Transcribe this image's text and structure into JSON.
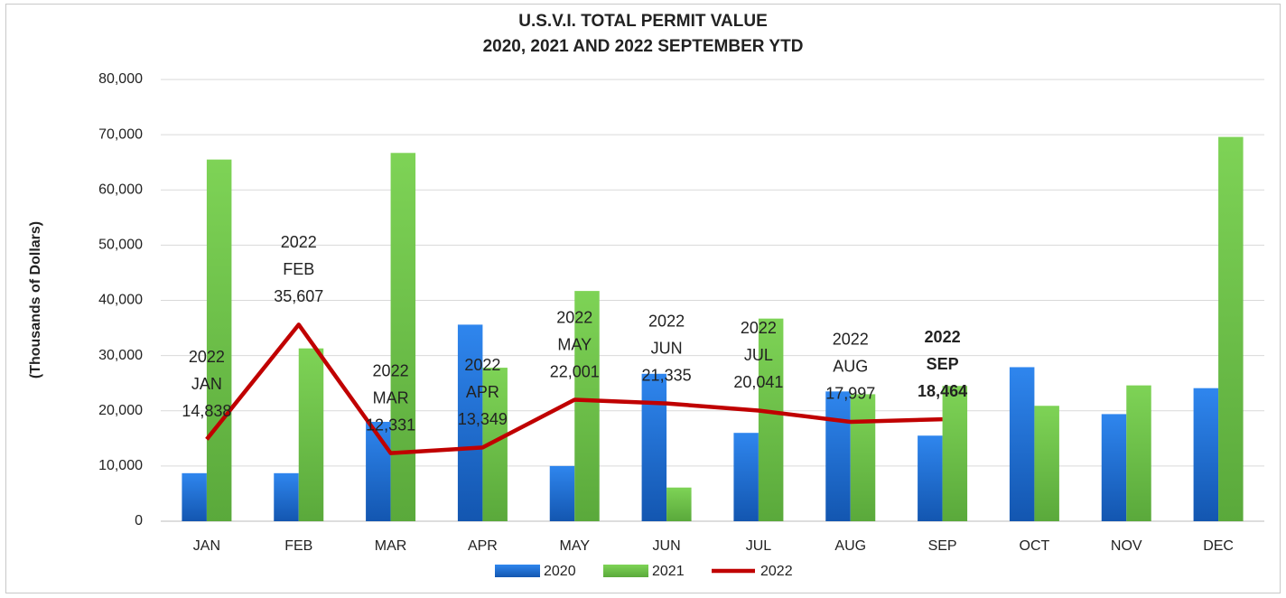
{
  "chart_data": {
    "type": "bar",
    "title": "U.S.V.I. TOTAL PERMIT VALUE",
    "subtitle": "2020, 2021 AND 2022 SEPTEMBER YTD",
    "y_label": "(Thousands of Dollars)",
    "categories": [
      "JAN",
      "FEB",
      "MAR",
      "APR",
      "MAY",
      "JUN",
      "JUL",
      "AUG",
      "SEP",
      "OCT",
      "NOV",
      "DEC"
    ],
    "series": [
      {
        "name": "2020",
        "type": "bar",
        "color": "#1f6fd0",
        "values": [
          8700,
          8700,
          18000,
          35600,
          10000,
          26700,
          16000,
          23500,
          15500,
          27900,
          19400,
          24100
        ]
      },
      {
        "name": "2021",
        "type": "bar",
        "color": "#6cc04a",
        "values": [
          65500,
          31300,
          66700,
          27800,
          41700,
          6100,
          36700,
          23000,
          24500,
          20900,
          24600,
          69600
        ]
      },
      {
        "name": "2022",
        "type": "line",
        "color": "#c00000",
        "values": [
          14838,
          35607,
          12331,
          13349,
          22001,
          21335,
          20041,
          17997,
          18464,
          null,
          null,
          null
        ],
        "value_labels": [
          [
            "2022",
            "JAN",
            "14,838"
          ],
          [
            "2022",
            "FEB",
            "35,607"
          ],
          [
            "2022",
            "MAR",
            "12,331"
          ],
          [
            "2022",
            "APR",
            "13,349"
          ],
          [
            "2022",
            "MAY",
            "22,001"
          ],
          [
            "2022",
            "JUN",
            "21,335"
          ],
          [
            "2022",
            "JUL",
            "20,041"
          ],
          [
            "2022",
            "AUG",
            "17,997"
          ],
          [
            "2022",
            "SEP",
            "18,464"
          ],
          null,
          null,
          null
        ],
        "bold_label_index": 8
      }
    ],
    "ylim": [
      0,
      80000
    ],
    "yticks": [
      0,
      {
        "value": 10000,
        "label": "10,000"
      },
      {
        "value": 20000,
        "label": "20,000"
      },
      {
        "value": 30000,
        "label": "30,000"
      },
      {
        "value": 40000,
        "label": "40,000"
      },
      {
        "value": 50000,
        "label": "50,000"
      },
      {
        "value": 60000,
        "label": "60,000"
      },
      {
        "value": 70000,
        "label": "70,000"
      },
      {
        "value": 80000,
        "label": "80,000"
      }
    ],
    "grid": true,
    "legend": "bottom"
  }
}
